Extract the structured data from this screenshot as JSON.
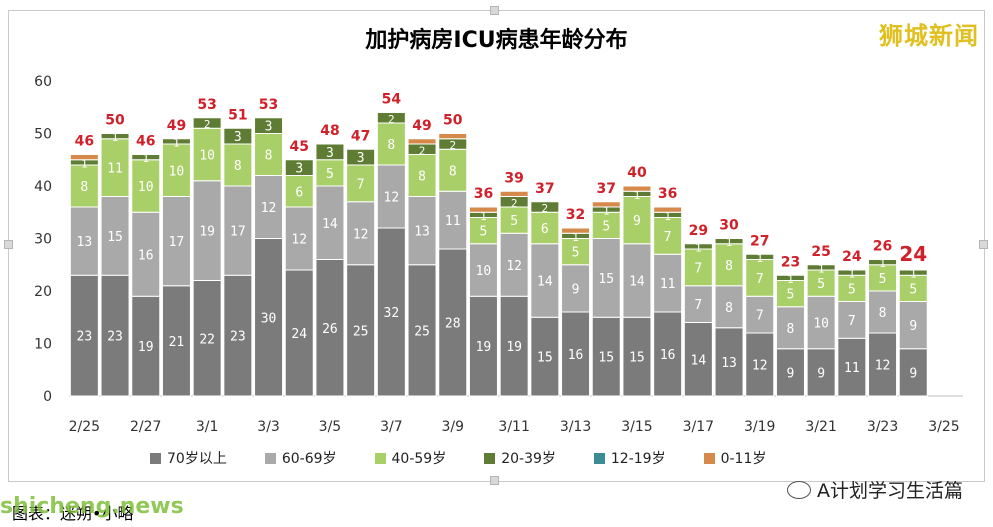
{
  "title": "加护病房ICU病患年龄分布",
  "brand": "狮城新闻",
  "credit": "图表：迷朔•小略",
  "watermark_site": "shicheng.news",
  "watermark_account": "A计划学习生活篇",
  "colors": {
    "70+": "#7b7b7b",
    "60-69": "#a9a9a9",
    "40-59": "#a9cf68",
    "20-39": "#5e7c33",
    "12-19": "#3c8c96",
    "0-11": "#d58a4c",
    "total_label": "#d0202a"
  },
  "chart_data": {
    "type": "bar",
    "stacked": true,
    "title": "加护病房ICU病患年龄分布",
    "ylim": [
      0,
      60
    ],
    "yticks": [
      "0",
      "10",
      "20",
      "30",
      "40",
      "50",
      "60"
    ],
    "xtick_labels": [
      "2/25",
      "2/27",
      "3/1",
      "3/3",
      "3/5",
      "3/7",
      "3/9",
      "3/11",
      "3/13",
      "3/15",
      "3/17",
      "3/19",
      "3/21",
      "3/23",
      "3/25"
    ],
    "categories": [
      "2/25",
      "2/26",
      "2/27",
      "2/28",
      "3/1",
      "3/2",
      "3/3",
      "3/4",
      "3/5",
      "3/6",
      "3/7",
      "3/8",
      "3/9",
      "3/10",
      "3/11",
      "3/12",
      "3/13",
      "3/14",
      "3/15",
      "3/16",
      "3/17",
      "3/18",
      "3/19",
      "3/20",
      "3/21",
      "3/22",
      "3/23",
      "3/24"
    ],
    "series": [
      {
        "name": "70岁以上",
        "key": "70+",
        "values": [
          23,
          23,
          19,
          21,
          22,
          23,
          30,
          24,
          26,
          25,
          32,
          25,
          28,
          19,
          19,
          15,
          16,
          15,
          15,
          16,
          14,
          13,
          12,
          9,
          9,
          11,
          12,
          9
        ]
      },
      {
        "name": "60-69岁",
        "key": "60-69",
        "values": [
          13,
          15,
          16,
          17,
          19,
          17,
          12,
          12,
          14,
          12,
          12,
          13,
          11,
          10,
          12,
          14,
          9,
          15,
          14,
          11,
          7,
          8,
          7,
          8,
          10,
          7,
          8,
          9
        ]
      },
      {
        "name": "40-59岁",
        "key": "40-59",
        "values": [
          8,
          11,
          10,
          10,
          10,
          8,
          8,
          6,
          5,
          7,
          8,
          8,
          8,
          5,
          5,
          6,
          5,
          5,
          9,
          7,
          7,
          8,
          7,
          5,
          5,
          5,
          5,
          5
        ]
      },
      {
        "name": "20-39岁",
        "key": "20-39",
        "values": [
          1,
          1,
          1,
          1,
          2,
          3,
          3,
          3,
          3,
          3,
          2,
          2,
          2,
          1,
          2,
          2,
          1,
          1,
          1,
          1,
          1,
          1,
          1,
          1,
          1,
          1,
          1,
          1
        ]
      },
      {
        "name": "12-19岁",
        "key": "12-19",
        "values": [
          0,
          0,
          0,
          0,
          0,
          0,
          0,
          0,
          0,
          0,
          0,
          0,
          0,
          0,
          0,
          0,
          0,
          0,
          0,
          0,
          0,
          0,
          0,
          0,
          0,
          0,
          0,
          0
        ]
      },
      {
        "name": "0-11岁",
        "key": "0-11",
        "values": [
          1,
          0,
          0,
          0,
          0,
          0,
          0,
          0,
          0,
          0,
          0,
          1,
          1,
          1,
          1,
          0,
          1,
          1,
          1,
          1,
          0,
          0,
          0,
          0,
          0,
          0,
          0,
          0
        ]
      }
    ],
    "totals": [
      46,
      50,
      46,
      49,
      53,
      51,
      53,
      45,
      48,
      47,
      54,
      49,
      50,
      36,
      39,
      37,
      32,
      37,
      40,
      36,
      29,
      30,
      27,
      23,
      25,
      24,
      26,
      24
    ],
    "legend_position": "bottom",
    "grid": false
  }
}
